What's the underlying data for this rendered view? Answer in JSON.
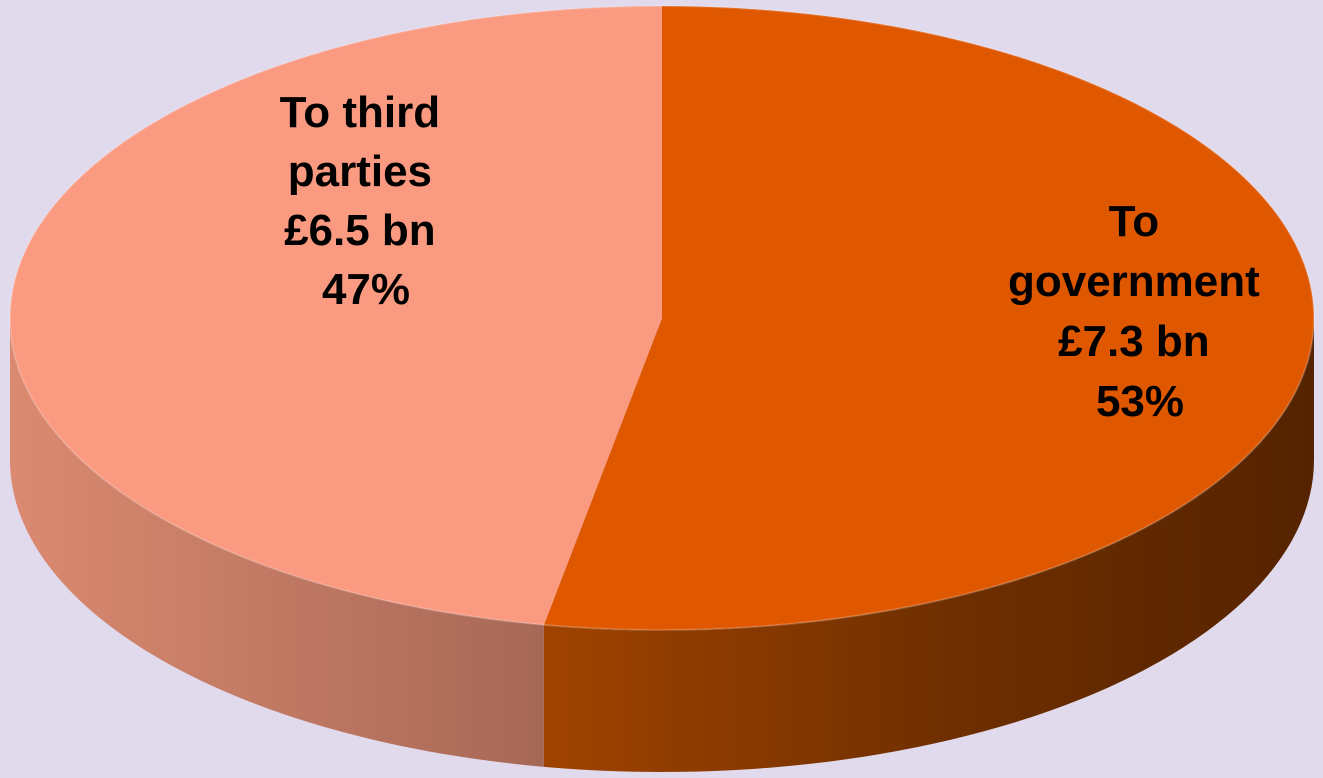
{
  "colors": {
    "background": "#e1d9ec",
    "slice_government": "#df5800",
    "slice_third_parties": "#fa9a80"
  },
  "chart_data": {
    "type": "pie",
    "style": "3d",
    "title": "",
    "unit": "£ bn",
    "slices": [
      {
        "id": "government",
        "name": "To government",
        "value": 7.3,
        "percent": 53,
        "color": "#df5800",
        "label": {
          "lines": [
            "To",
            "government",
            "£7.3 bn",
            "53%"
          ]
        }
      },
      {
        "id": "third-parties",
        "name": "To third parties",
        "value": 6.5,
        "percent": 47,
        "color": "#fa9a80",
        "label": {
          "lines": [
            "To third",
            "parties",
            "£6.5 bn",
            "47%"
          ]
        }
      }
    ]
  }
}
